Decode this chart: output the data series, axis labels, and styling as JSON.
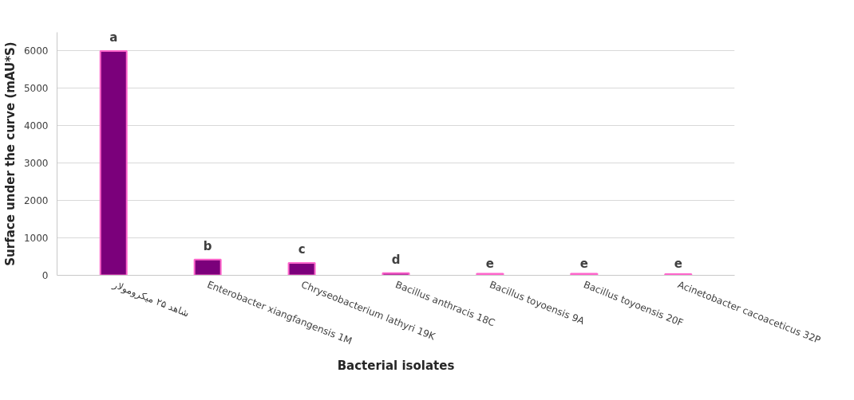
{
  "chart_data": {
    "type": "bar",
    "xlabel": "Bacterial isolates",
    "ylabel": "Surface under the curve (mAU*S)",
    "categories": [
      "شاهد ۲۵ میکرومولار",
      "Enterobacter xiangfangensis 1M",
      "Chryseobacterium lathyri 19K",
      "Bacillus anthracis 18C",
      "Bacillus toyoensis 9A",
      "Bacillus toyoensis 20F",
      "Acinetobacter cacoaceticus 32P"
    ],
    "values": [
      6000,
      420,
      330,
      60,
      40,
      40,
      30
    ],
    "color": "#7b007b",
    "ylim": [
      0,
      6500
    ],
    "yticks": [
      0,
      1000,
      2000,
      3000,
      4000,
      5000,
      6000
    ],
    "grid": "y",
    "annotations": [
      {
        "text": "a",
        "x": "شاهد ۲۵ میکرومولار",
        "y": 6000
      },
      {
        "text": "b",
        "x": "Enterobacter xiangfangensis 1M",
        "y": 420
      },
      {
        "text": "c",
        "x": "Chryseobacterium lathyri 19K",
        "y": 330
      },
      {
        "text": "d",
        "x": "Bacillus anthracis 18C",
        "y": 60
      },
      {
        "text": "e",
        "x": "Bacillus toyoensis 9A",
        "y": 40
      },
      {
        "text": "e",
        "x": "Bacillus toyoensis 20F",
        "y": 40
      },
      {
        "text": "e",
        "x": "Acinetobacter cacoaceticus 32P",
        "y": 30
      }
    ]
  }
}
